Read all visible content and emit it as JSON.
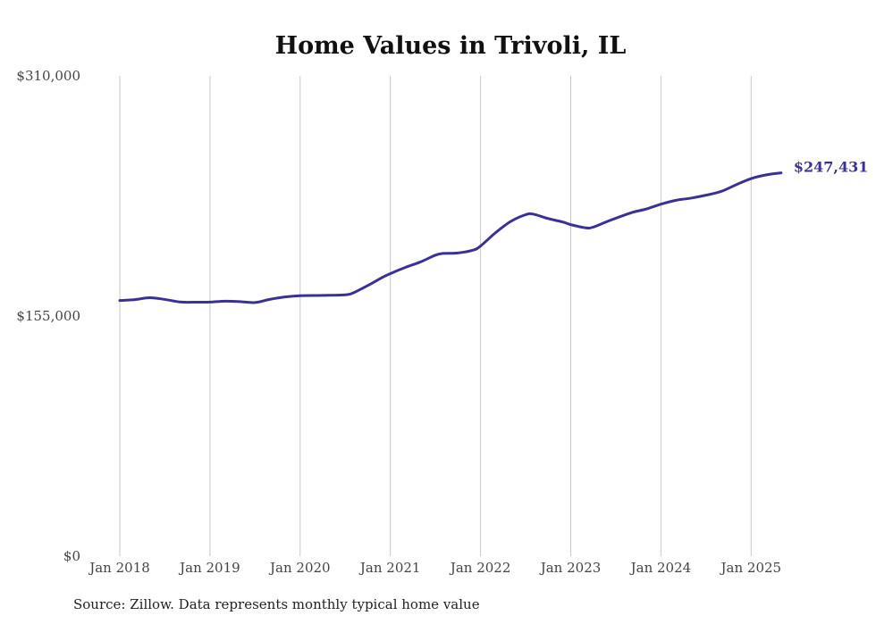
{
  "chart_data": {
    "type": "line",
    "title": "Home Values in Trivoli, IL",
    "xlabel": "",
    "ylabel": "",
    "ylim": [
      0,
      310000
    ],
    "y_ticks": [
      0,
      155000,
      310000
    ],
    "y_tick_labels": [
      "$0",
      "$155,000",
      "$310,000"
    ],
    "x_ticks": [
      2018,
      2019,
      2020,
      2021,
      2022,
      2023,
      2024,
      2025
    ],
    "x_tick_labels": [
      "Jan 2018",
      "Jan 2019",
      "Jan 2020",
      "Jan 2021",
      "Jan 2022",
      "Jan 2023",
      "Jan 2024",
      "Jan 2025"
    ],
    "grid": "vertical",
    "line_color": "#3a3196",
    "series": [
      {
        "values": [
          [
            2018.0,
            165000
          ],
          [
            2018.167,
            165600
          ],
          [
            2018.333,
            166800
          ],
          [
            2018.5,
            165700
          ],
          [
            2018.667,
            164100
          ],
          [
            2018.833,
            163900
          ],
          [
            2019.0,
            164000
          ],
          [
            2019.167,
            164600
          ],
          [
            2019.333,
            164300
          ],
          [
            2019.5,
            163700
          ],
          [
            2019.667,
            165800
          ],
          [
            2019.833,
            167300
          ],
          [
            2020.0,
            168100
          ],
          [
            2020.25,
            168300
          ],
          [
            2020.5,
            168700
          ],
          [
            2020.583,
            169800
          ],
          [
            2020.75,
            174700
          ],
          [
            2020.917,
            180100
          ],
          [
            2021.0,
            182400
          ],
          [
            2021.167,
            186400
          ],
          [
            2021.333,
            189900
          ],
          [
            2021.5,
            194300
          ],
          [
            2021.583,
            195400
          ],
          [
            2021.75,
            195700
          ],
          [
            2021.917,
            197500
          ],
          [
            2022.0,
            200200
          ],
          [
            2022.167,
            208800
          ],
          [
            2022.333,
            216000
          ],
          [
            2022.5,
            220400
          ],
          [
            2022.583,
            220800
          ],
          [
            2022.75,
            217900
          ],
          [
            2022.917,
            215600
          ],
          [
            2023.0,
            214000
          ],
          [
            2023.167,
            211900
          ],
          [
            2023.25,
            212400
          ],
          [
            2023.417,
            216300
          ],
          [
            2023.667,
            221600
          ],
          [
            2023.833,
            224000
          ],
          [
            2024.0,
            227200
          ],
          [
            2024.167,
            229700
          ],
          [
            2024.333,
            231100
          ],
          [
            2024.5,
            233000
          ],
          [
            2024.667,
            235400
          ],
          [
            2024.833,
            239700
          ],
          [
            2025.0,
            243700
          ],
          [
            2025.167,
            246100
          ],
          [
            2025.333,
            247431
          ]
        ]
      }
    ],
    "end_label": "$247,431",
    "source": "Source: Zillow. Data represents monthly typical home value"
  }
}
